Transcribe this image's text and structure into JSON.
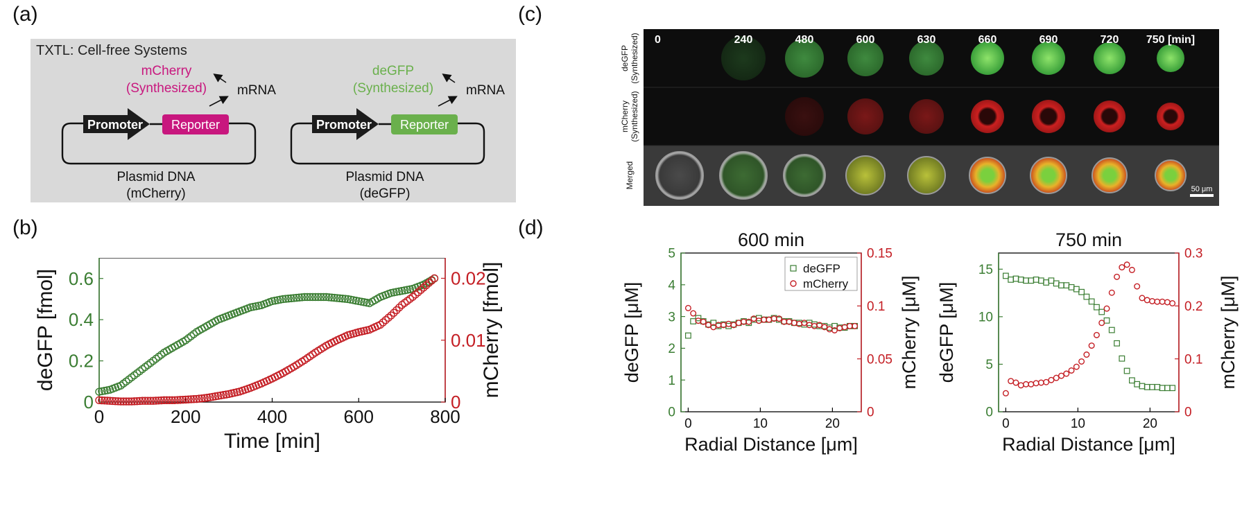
{
  "panel_labels": {
    "a": "(a)",
    "b": "(b)",
    "c": "(c)",
    "d": "(d)"
  },
  "colors": {
    "green": "#3a7d32",
    "red": "#c41e24",
    "magenta": "#c8177e",
    "lightgreen": "#6ab04c",
    "grey": "#d9d9d9"
  },
  "schematic": {
    "title": "TXTL: Cell-free Systems",
    "left": {
      "product": "mCherry",
      "synth": "(Synthesized)",
      "mrna": "mRNA",
      "promoter": "Promoter",
      "reporter": "Reporter",
      "plasmid": "Plasmid DNA",
      "plasmid_name": "(mCherry)"
    },
    "right": {
      "product": "deGFP",
      "synth": "(Synthesized)",
      "mrna": "mRNA",
      "promoter": "Promoter",
      "reporter": "Reporter",
      "plasmid": "Plasmid DNA",
      "plasmid_name": "(deGFP)"
    }
  },
  "microscopy": {
    "times": [
      "0",
      "240",
      "480",
      "600",
      "630",
      "660",
      "690",
      "720",
      "750 [min]"
    ],
    "rows": [
      {
        "label1": "deGFP",
        "label2": "(Synthesized)"
      },
      {
        "label1": "mCherry",
        "label2": "(Synthesized)"
      },
      {
        "label1": "Merged",
        "label2": ""
      }
    ],
    "scalebar": "50 μm"
  },
  "chart_data": [
    {
      "id": "b",
      "type": "scatter",
      "xlabel": "Time [min]",
      "ylabel_left": "deGFP [fmol]",
      "ylabel_right": "mCherry [fmol]",
      "xlim": [
        0,
        800
      ],
      "ylim_left": [
        0,
        0.7
      ],
      "ylim_right": [
        0,
        0.0233
      ],
      "xticks": [
        "0",
        "200",
        "400",
        "600",
        "800"
      ],
      "yticks_left": [
        "0",
        "0.2",
        "0.4",
        "0.6"
      ],
      "yticks_right": [
        "0",
        "0.01",
        "0.02"
      ],
      "series": [
        {
          "name": "deGFP",
          "axis": "left",
          "color": "#3a7d32",
          "marker": "circle",
          "x": [
            0,
            25,
            50,
            75,
            100,
            125,
            150,
            175,
            200,
            225,
            250,
            275,
            300,
            325,
            350,
            375,
            400,
            425,
            450,
            475,
            500,
            525,
            550,
            575,
            600,
            625,
            650,
            675,
            700,
            725,
            750,
            775
          ],
          "y": [
            0.05,
            0.06,
            0.08,
            0.12,
            0.16,
            0.2,
            0.24,
            0.27,
            0.3,
            0.34,
            0.37,
            0.4,
            0.42,
            0.44,
            0.46,
            0.47,
            0.49,
            0.5,
            0.505,
            0.51,
            0.51,
            0.51,
            0.505,
            0.5,
            0.49,
            0.48,
            0.51,
            0.53,
            0.54,
            0.55,
            0.57,
            0.6
          ]
        },
        {
          "name": "mCherry",
          "axis": "right",
          "color": "#c41e24",
          "marker": "circle",
          "x": [
            0,
            25,
            50,
            75,
            100,
            125,
            150,
            175,
            200,
            225,
            250,
            275,
            300,
            325,
            350,
            375,
            400,
            425,
            450,
            475,
            500,
            525,
            550,
            575,
            600,
            625,
            650,
            675,
            700,
            725,
            750,
            775
          ],
          "y": [
            0.0003,
            0.0002,
            0.0001,
            0.0001,
            0.0002,
            0.0002,
            0.0003,
            0.0003,
            0.0004,
            0.0005,
            0.0007,
            0.001,
            0.0013,
            0.0017,
            0.0023,
            0.003,
            0.0038,
            0.0047,
            0.0057,
            0.0068,
            0.008,
            0.0091,
            0.01,
            0.0108,
            0.0113,
            0.0117,
            0.0125,
            0.014,
            0.0157,
            0.017,
            0.0185,
            0.02
          ]
        }
      ]
    },
    {
      "id": "d1",
      "type": "scatter",
      "title": "600 min",
      "xlabel": "Radial Distance [μm]",
      "ylabel_left": "deGFP [μM]",
      "ylabel_right": "mCherry [μM]",
      "xlim": [
        -1,
        24
      ],
      "ylim_left": [
        0,
        5
      ],
      "ylim_right": [
        0,
        0.15
      ],
      "xticks": [
        "0",
        "10",
        "20"
      ],
      "yticks_left": [
        "0",
        "1",
        "2",
        "3",
        "4",
        "5"
      ],
      "yticks_right": [
        "0",
        "0.05",
        "0.1",
        "0.15"
      ],
      "legend": [
        "deGFP",
        "mCherry"
      ],
      "series": [
        {
          "name": "deGFP",
          "axis": "left",
          "color": "#3a7d32",
          "marker": "square",
          "x": [
            0,
            0.7,
            1.4,
            2.1,
            2.8,
            3.5,
            4.2,
            4.9,
            5.6,
            6.3,
            7,
            7.7,
            8.4,
            9.1,
            9.8,
            10.5,
            11.2,
            11.9,
            12.6,
            13.3,
            14,
            14.7,
            15.4,
            16.1,
            16.8,
            17.5,
            18.2,
            18.9,
            19.6,
            20.3,
            21,
            21.7,
            22.4,
            23.1
          ],
          "y": [
            2.4,
            2.85,
            2.95,
            2.85,
            2.75,
            2.8,
            2.7,
            2.75,
            2.7,
            2.75,
            2.8,
            2.85,
            2.8,
            2.9,
            2.95,
            2.9,
            2.9,
            2.95,
            2.9,
            2.85,
            2.85,
            2.8,
            2.8,
            2.75,
            2.8,
            2.75,
            2.7,
            2.7,
            2.65,
            2.7,
            2.65,
            2.65,
            2.7,
            2.7
          ]
        },
        {
          "name": "mCherry",
          "axis": "right",
          "color": "#c41e24",
          "marker": "circle",
          "x": [
            0,
            0.7,
            1.4,
            2.1,
            2.8,
            3.5,
            4.2,
            4.9,
            5.6,
            6.3,
            7,
            7.7,
            8.4,
            9.1,
            9.8,
            10.5,
            11.2,
            11.9,
            12.6,
            13.3,
            14,
            14.7,
            15.4,
            16.1,
            16.8,
            17.5,
            18.2,
            18.9,
            19.6,
            20.3,
            21,
            21.7,
            22.4,
            23.1
          ],
          "y": [
            0.098,
            0.093,
            0.086,
            0.085,
            0.082,
            0.08,
            0.082,
            0.082,
            0.083,
            0.082,
            0.084,
            0.085,
            0.085,
            0.088,
            0.086,
            0.087,
            0.087,
            0.088,
            0.088,
            0.085,
            0.085,
            0.084,
            0.083,
            0.084,
            0.082,
            0.081,
            0.082,
            0.08,
            0.078,
            0.077,
            0.079,
            0.08,
            0.081,
            0.081
          ]
        }
      ]
    },
    {
      "id": "d2",
      "type": "scatter",
      "title": "750 min",
      "xlabel": "Radial Distance [μm]",
      "ylabel_left": "deGFP [μM]",
      "ylabel_right": "mCherry [μM]",
      "xlim": [
        -1,
        24
      ],
      "ylim_left": [
        0,
        16.7
      ],
      "ylim_right": [
        0,
        0.3
      ],
      "xticks": [
        "0",
        "10",
        "20"
      ],
      "yticks_left": [
        "0",
        "5",
        "10",
        "15"
      ],
      "yticks_right": [
        "0",
        "0.1",
        "0.2",
        "0.3"
      ],
      "series": [
        {
          "name": "deGFP",
          "axis": "left",
          "color": "#3a7d32",
          "marker": "square",
          "x": [
            0,
            0.7,
            1.4,
            2.1,
            2.8,
            3.5,
            4.2,
            4.9,
            5.6,
            6.3,
            7,
            7.7,
            8.4,
            9.1,
            9.8,
            10.5,
            11.2,
            11.9,
            12.6,
            13.3,
            14,
            14.7,
            15.4,
            16.1,
            16.8,
            17.5,
            18.2,
            18.9,
            19.6,
            20.3,
            21,
            21.7,
            22.4,
            23.1
          ],
          "y": [
            14.3,
            13.9,
            14.0,
            13.9,
            13.8,
            13.8,
            13.9,
            13.8,
            13.6,
            13.8,
            13.5,
            13.3,
            13.3,
            13.1,
            12.9,
            12.6,
            12.1,
            11.6,
            11.0,
            10.5,
            9.6,
            8.6,
            7.2,
            5.6,
            4.3,
            3.3,
            2.9,
            2.7,
            2.6,
            2.6,
            2.6,
            2.5,
            2.5,
            2.5
          ]
        },
        {
          "name": "mCherry",
          "axis": "right",
          "color": "#c41e24",
          "marker": "circle",
          "x": [
            0,
            0.7,
            1.4,
            2.1,
            2.8,
            3.5,
            4.2,
            4.9,
            5.6,
            6.3,
            7,
            7.7,
            8.4,
            9.1,
            9.8,
            10.5,
            11.2,
            11.9,
            12.6,
            13.3,
            14,
            14.7,
            15.4,
            16.1,
            16.8,
            17.5,
            18.2,
            18.9,
            19.6,
            20.3,
            21,
            21.7,
            22.4,
            23.1
          ],
          "y": [
            0.035,
            0.058,
            0.055,
            0.05,
            0.052,
            0.052,
            0.054,
            0.055,
            0.056,
            0.06,
            0.064,
            0.068,
            0.072,
            0.078,
            0.085,
            0.095,
            0.108,
            0.125,
            0.145,
            0.168,
            0.195,
            0.225,
            0.255,
            0.273,
            0.278,
            0.268,
            0.237,
            0.215,
            0.211,
            0.209,
            0.208,
            0.208,
            0.207,
            0.205
          ]
        }
      ]
    }
  ]
}
